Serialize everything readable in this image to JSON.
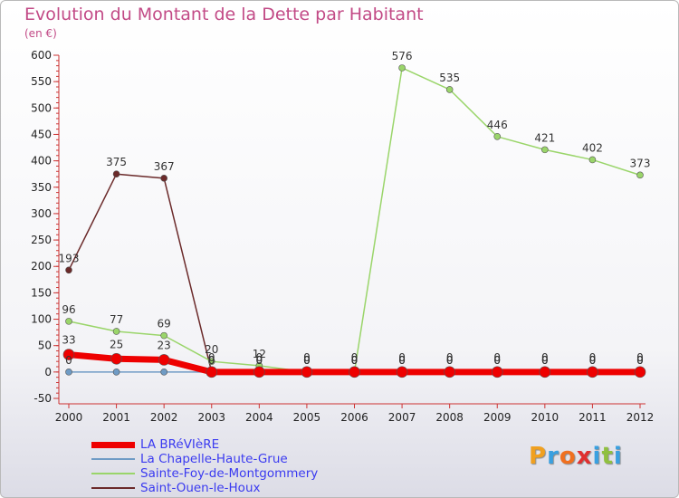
{
  "title": "Evolution du Montant de la Dette par Habitant",
  "subtitle": "(en €)",
  "logo": {
    "text": "Proxiti",
    "colors": [
      "#f0a020",
      "#3aa0e0",
      "#f07020",
      "#e03030",
      "#3aa0e0",
      "#90c040",
      "#3aa0e0"
    ]
  },
  "chart_data": {
    "type": "line",
    "title": "Evolution du Montant de la Dette par Habitant",
    "ylabel": "(en €)",
    "categories": [
      "2000",
      "2001",
      "2002",
      "2003",
      "2004",
      "2005",
      "2006",
      "2007",
      "2008",
      "2009",
      "2010",
      "2011",
      "2012"
    ],
    "ylim": [
      -50,
      600
    ],
    "yticks": [
      -50,
      0,
      50,
      100,
      150,
      200,
      250,
      300,
      350,
      400,
      450,
      500,
      550,
      600
    ],
    "grid": false,
    "legend_position": "bottom-left",
    "series": [
      {
        "name": "LA BRéVIèRE",
        "color": "#ee0000",
        "values": [
          33,
          25,
          23,
          0,
          0,
          0,
          0,
          0,
          0,
          0,
          0,
          0,
          0
        ],
        "labels": [
          "33",
          "25",
          "23",
          "0",
          "0",
          "0",
          "0",
          "0",
          "0",
          "0",
          "0",
          "0",
          "0"
        ]
      },
      {
        "name": "La Chapelle-Haute-Grue",
        "color": "#6f9bc5",
        "values": [
          0,
          0,
          0,
          0,
          0,
          0,
          0,
          0,
          0,
          0,
          0,
          0,
          0
        ],
        "labels": [
          "0",
          "",
          "",
          "0",
          "0",
          "0",
          "0",
          "0",
          "0",
          "0",
          "0",
          "0",
          "0"
        ]
      },
      {
        "name": "Sainte-Foy-de-Montgommery",
        "color": "#9ad56a",
        "values": [
          96,
          77,
          69,
          20,
          12,
          0,
          0,
          576,
          535,
          446,
          421,
          402,
          373
        ],
        "labels": [
          "96",
          "77",
          "69",
          "20",
          "12",
          "0",
          "0",
          "576",
          "535",
          "446",
          "421",
          "402",
          "373"
        ]
      },
      {
        "name": "Saint-Ouen-le-Houx",
        "color": "#6b2a2a",
        "values": [
          193,
          375,
          367,
          0,
          0,
          0,
          0,
          0,
          0,
          0,
          0,
          0,
          0
        ],
        "labels": [
          "193",
          "375",
          "367",
          "0",
          "0",
          "0",
          "0",
          "0",
          "0",
          "0",
          "0",
          "0",
          "0"
        ]
      }
    ]
  }
}
